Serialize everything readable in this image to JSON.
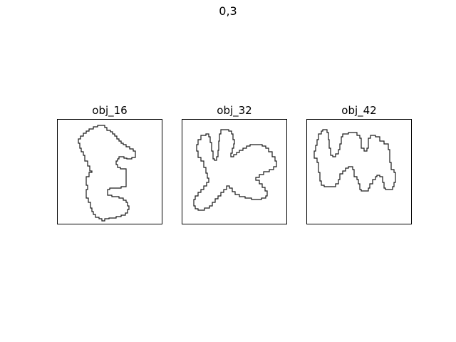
{
  "figure": {
    "title": "0,3"
  },
  "panels": [
    {
      "title": "obj_16"
    },
    {
      "title": "obj_32"
    },
    {
      "title": "obj_42"
    }
  ],
  "colors": {
    "background": "#ffffff",
    "frame": "#000000",
    "outline": "#1a1a1a"
  }
}
